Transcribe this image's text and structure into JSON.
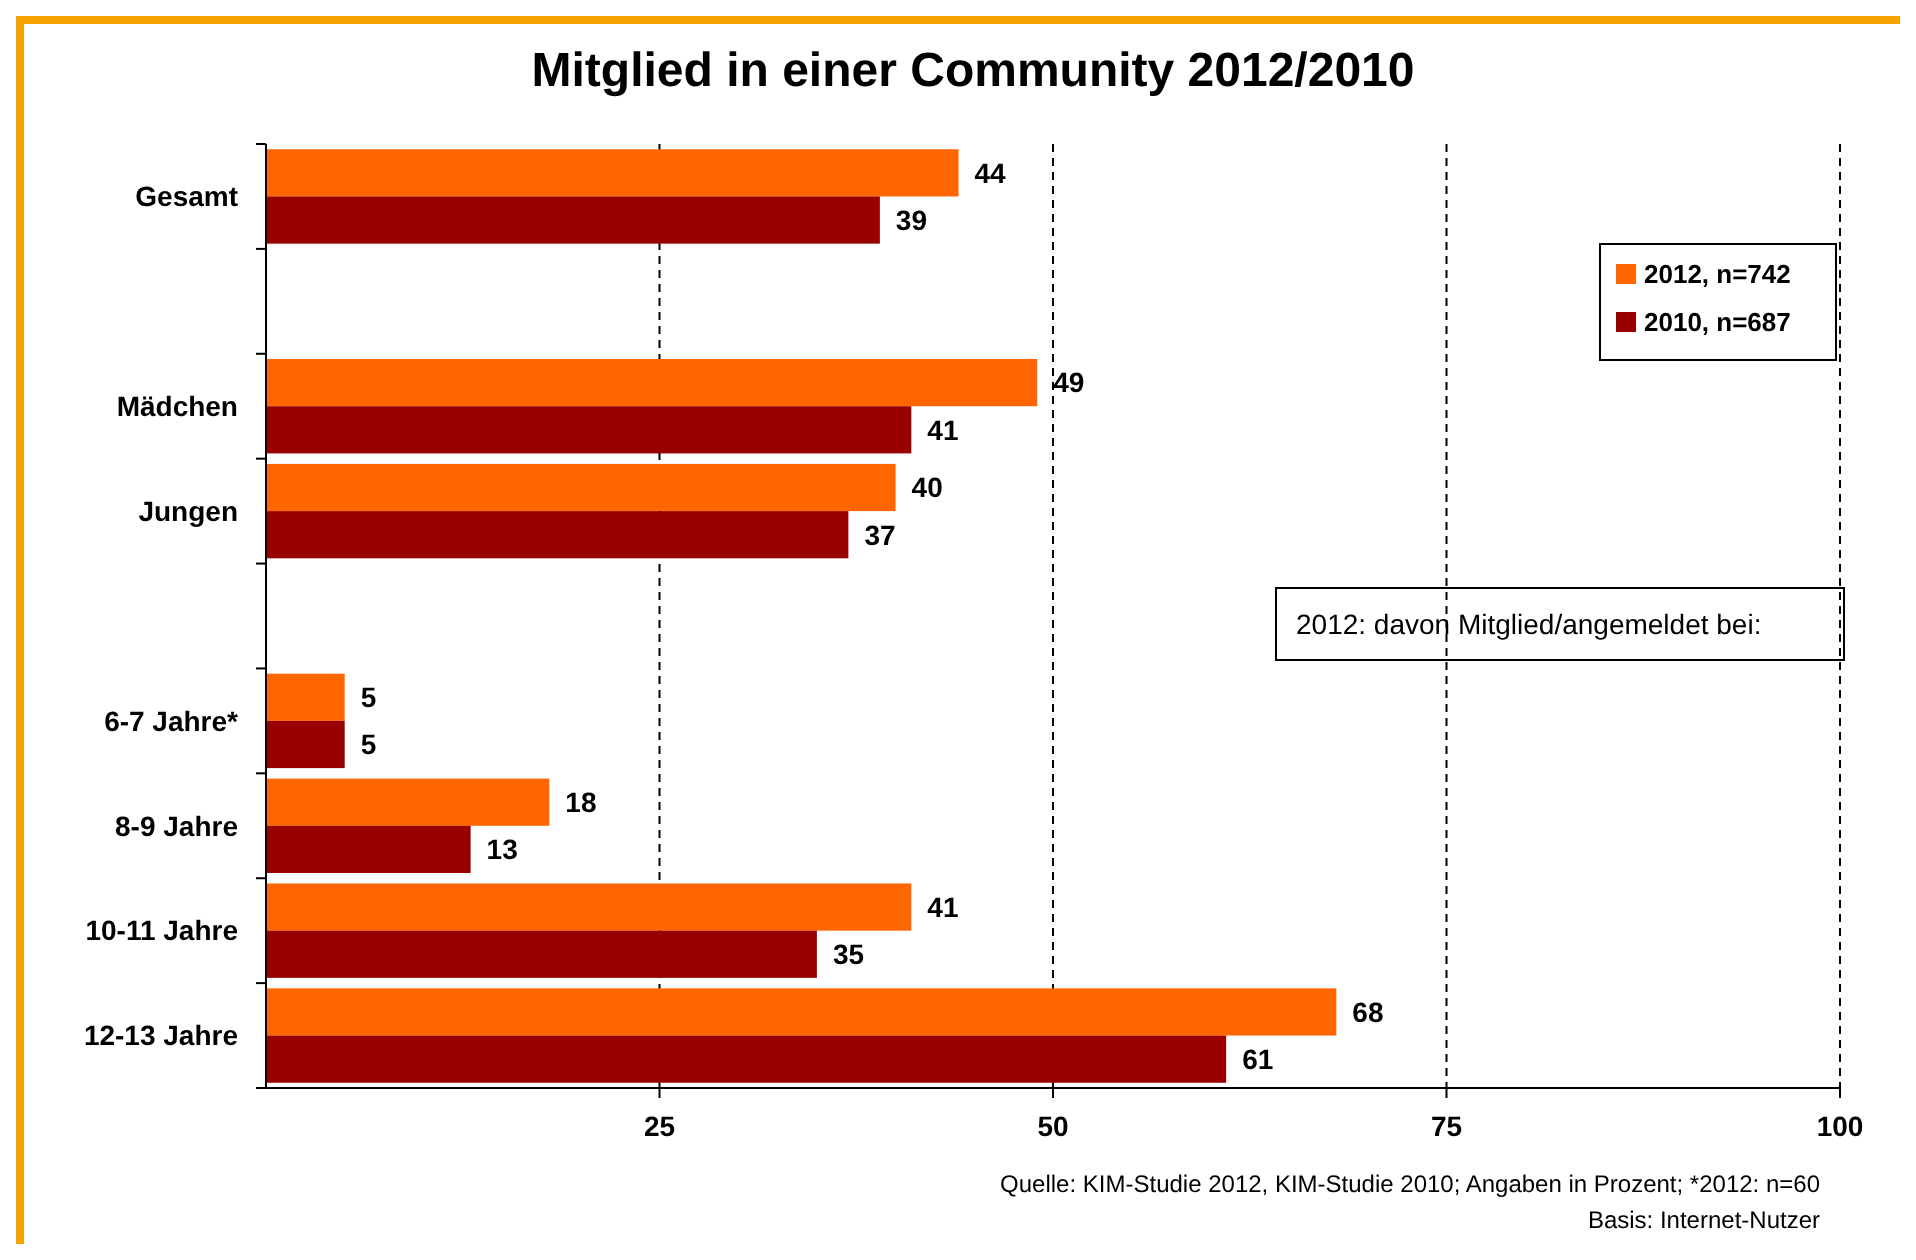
{
  "chart_data": {
    "type": "bar",
    "orientation": "horizontal",
    "title": "Mitglied in einer Community 2012/2010",
    "categories": [
      "Gesamt",
      null,
      "Mädchen",
      "Jungen",
      null,
      "6-7 Jahre*",
      "8-9 Jahre",
      "10-11 Jahre",
      "12-13 Jahre"
    ],
    "series": [
      {
        "name": "2012, n=742",
        "color": "#ff6600",
        "values": [
          44,
          null,
          49,
          40,
          null,
          5,
          18,
          41,
          68
        ]
      },
      {
        "name": "2010, n=687",
        "color": "#990000",
        "values": [
          39,
          null,
          41,
          37,
          null,
          5,
          13,
          35,
          61
        ]
      }
    ],
    "xlim": [
      0,
      100
    ],
    "xticks": [
      25,
      50,
      75,
      100
    ],
    "grid": "x",
    "legend": "top right",
    "data_labels": true,
    "annotations": [
      "2012: davon Mitglied/angemeldet bei:",
      "Quelle: KIM-Studie 2012, KIM-Studie 2010; Angaben in Prozent; *2012: n=60",
      "Basis: Internet-Nutzer"
    ]
  }
}
